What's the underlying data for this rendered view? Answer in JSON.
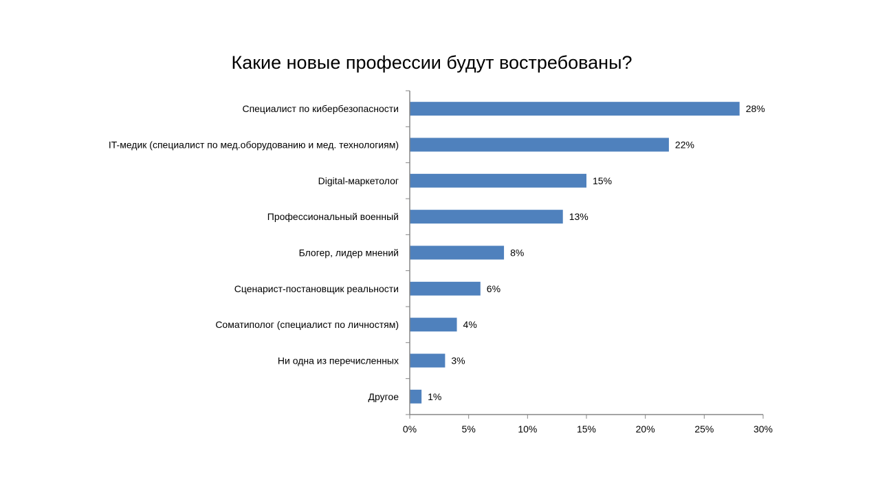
{
  "chart_data": {
    "type": "bar",
    "orientation": "horizontal",
    "title": "Какие новые профессии будут востребованы?",
    "categories": [
      "Специалист по кибербезопасности",
      "IT-медик (специалист по мед.оборудованию и мед. технологиям)",
      "Digital-маркетолог",
      "Профессиональный военный",
      "Блогер, лидер мнений",
      "Сценарист-постановщик реальности",
      "Соматиполог (специалист по личностям)",
      "Ни одна из перечисленных",
      "Другое"
    ],
    "values": [
      28,
      22,
      15,
      13,
      8,
      6,
      4,
      3,
      1
    ],
    "data_labels": [
      "28%",
      "22%",
      "15%",
      "13%",
      "8%",
      "6%",
      "4%",
      "3%",
      "1%"
    ],
    "xlim": [
      0,
      30
    ],
    "xticks": [
      0,
      5,
      10,
      15,
      20,
      25,
      30
    ],
    "xtick_labels": [
      "0%",
      "5%",
      "10%",
      "15%",
      "20%",
      "25%",
      "30%"
    ],
    "xlabel": "",
    "ylabel": "",
    "grid": false,
    "legend": "none",
    "bar_color": "#4F81BD",
    "axis_color": "#868686"
  }
}
